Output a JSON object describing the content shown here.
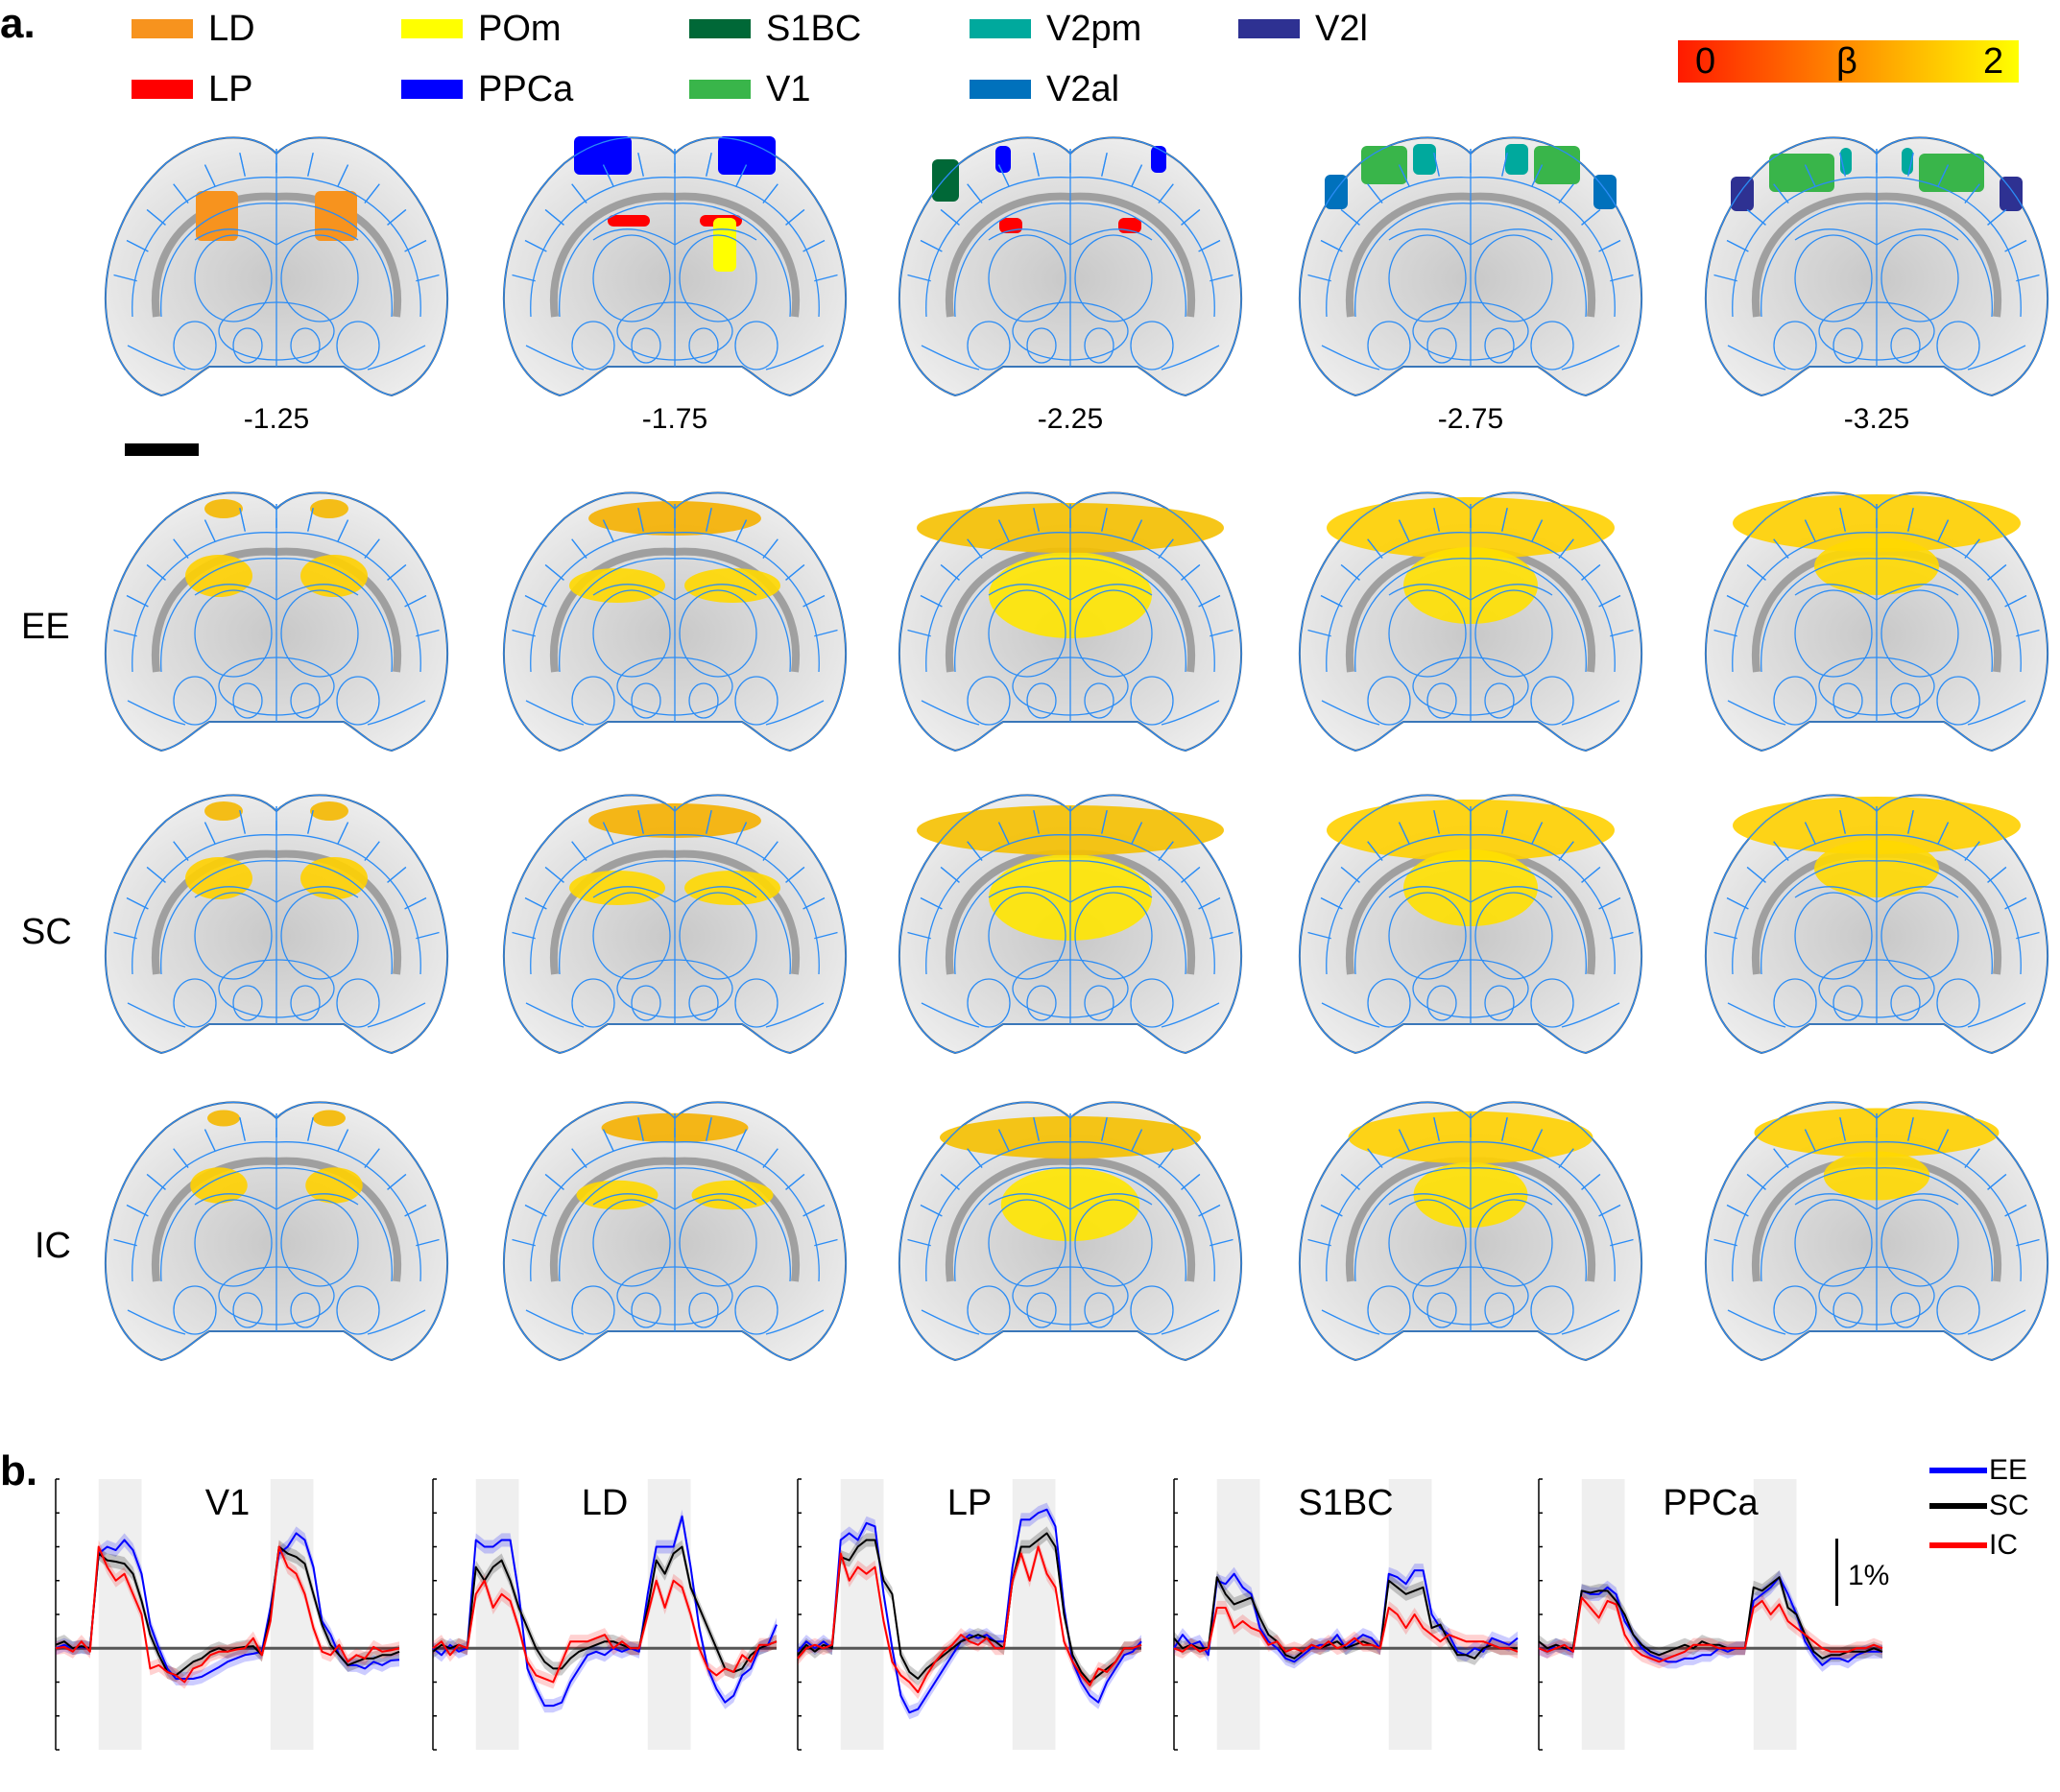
{
  "panel_a": {
    "letter": "a.",
    "legend": [
      {
        "label": "LD",
        "color": "#f7931e"
      },
      {
        "label": "LP",
        "color": "#ff0000"
      },
      {
        "label": "POm",
        "color": "#ffff00"
      },
      {
        "label": "PPCa",
        "color": "#0000ff"
      },
      {
        "label": "S1BC",
        "color": "#006837"
      },
      {
        "label": "V1",
        "color": "#39b54a"
      },
      {
        "label": "V2pm",
        "color": "#00a99d"
      },
      {
        "label": "V2al",
        "color": "#0071bc"
      },
      {
        "label": "V2l",
        "color": "#2e3192"
      }
    ],
    "colorbar": {
      "min_label": "0",
      "mid_label": "β",
      "max_label": "2",
      "min": 0,
      "max": 2
    },
    "slices": [
      {
        "label": "-1.25",
        "regions": [
          "LD"
        ]
      },
      {
        "label": "-1.75",
        "regions": [
          "PPCa",
          "LP",
          "POm"
        ]
      },
      {
        "label": "-2.25",
        "regions": [
          "S1BC",
          "PPCa",
          "LP"
        ]
      },
      {
        "label": "-2.75",
        "regions": [
          "V2al",
          "V1",
          "V2pm"
        ]
      },
      {
        "label": "-3.25",
        "regions": [
          "V2l",
          "V1",
          "V2pm"
        ]
      }
    ],
    "rows": [
      {
        "label": "EE"
      },
      {
        "label": "SC"
      },
      {
        "label": "IC"
      }
    ]
  },
  "chart_data": {
    "type": "line",
    "panel_letter": "b.",
    "xlabel": "",
    "ylabel": "",
    "x": [
      0,
      1,
      2,
      3,
      4,
      5,
      6,
      7,
      8,
      9,
      10,
      11,
      12,
      13,
      14,
      15,
      16,
      17,
      18,
      19,
      20,
      21,
      22,
      23,
      24,
      25,
      26,
      27,
      28,
      29,
      30,
      31,
      32,
      33,
      34,
      35,
      36,
      37,
      38,
      39,
      40
    ],
    "xlim": [
      0,
      40
    ],
    "ylim": [
      -1.5,
      2.5
    ],
    "y_tick_step": 0.5,
    "stimulus_windows": [
      [
        5,
        10
      ],
      [
        25,
        30
      ]
    ],
    "scale_bar": {
      "label": "1%",
      "value": 1
    },
    "legend": [
      {
        "name": "EE",
        "color": "#0000ff"
      },
      {
        "name": "SC",
        "color": "#000000"
      },
      {
        "name": "IC",
        "color": "#ff0000"
      }
    ],
    "error_band_halfwidth": 0.1,
    "panels": [
      {
        "title": "V1",
        "series": [
          {
            "name": "EE",
            "values": [
              0,
              0.05,
              0,
              0.02,
              0,
              1.4,
              1.5,
              1.45,
              1.6,
              1.45,
              1.1,
              0.35,
              0.0,
              -0.3,
              -0.45,
              -0.45,
              -0.45,
              -0.42,
              -0.35,
              -0.28,
              -0.2,
              -0.15,
              -0.1,
              -0.08,
              -0.05,
              0.6,
              1.4,
              1.5,
              1.7,
              1.6,
              1.2,
              0.4,
              0.2,
              -0.1,
              -0.25,
              -0.25,
              -0.3,
              -0.2,
              -0.25,
              -0.18,
              -0.17
            ]
          },
          {
            "name": "SC",
            "values": [
              0.05,
              0.1,
              0,
              0.03,
              0,
              1.4,
              1.3,
              1.28,
              1.25,
              1.1,
              0.7,
              0.2,
              -0.1,
              -0.35,
              -0.4,
              -0.3,
              -0.2,
              -0.15,
              -0.05,
              0,
              -0.05,
              0,
              0.02,
              0.03,
              -0.1,
              0.5,
              1.5,
              1.4,
              1.35,
              1.25,
              0.8,
              0.35,
              0.05,
              -0.1,
              -0.25,
              -0.2,
              -0.15,
              -0.15,
              -0.1,
              -0.1,
              -0.05
            ]
          },
          {
            "name": "IC",
            "values": [
              0,
              0.02,
              -0.05,
              0.1,
              -0.05,
              1.5,
              1.2,
              1.0,
              1.1,
              0.8,
              0.5,
              -0.3,
              -0.25,
              -0.35,
              -0.4,
              -0.5,
              -0.3,
              -0.25,
              -0.1,
              -0.05,
              -0.05,
              -0.02,
              0.0,
              0.15,
              -0.1,
              0.4,
              1.5,
              1.2,
              1.1,
              0.8,
              0.3,
              -0.05,
              -0.1,
              0.05,
              -0.2,
              -0.1,
              -0.15,
              0.02,
              -0.05,
              -0.03,
              0.0
            ]
          }
        ]
      },
      {
        "title": "LD",
        "series": [
          {
            "name": "EE",
            "values": [
              0,
              -0.1,
              0.05,
              -0.05,
              0,
              1.6,
              1.5,
              1.5,
              1.6,
              1.6,
              0.8,
              -0.3,
              -0.6,
              -0.85,
              -0.85,
              -0.8,
              -0.5,
              -0.3,
              -0.1,
              -0.05,
              -0.1,
              0.0,
              -0.05,
              0.0,
              -0.05,
              0.8,
              1.5,
              1.5,
              1.5,
              1.95,
              1.2,
              0.3,
              -0.3,
              -0.6,
              -0.8,
              -0.7,
              -0.4,
              -0.3,
              0.0,
              0.05,
              0.35
            ]
          },
          {
            "name": "SC",
            "values": [
              -0.05,
              0.05,
              0,
              0.05,
              0,
              1.2,
              1.0,
              1.2,
              1.3,
              1.0,
              0.6,
              0.3,
              0.0,
              -0.2,
              -0.3,
              -0.3,
              -0.15,
              -0.05,
              0.0,
              0.05,
              0.1,
              0.1,
              0.05,
              0.0,
              0.0,
              0.6,
              1.3,
              1.1,
              1.4,
              1.5,
              0.9,
              0.6,
              0.3,
              0.0,
              -0.3,
              -0.35,
              -0.3,
              -0.1,
              0.0,
              0.05,
              0.1
            ]
          },
          {
            "name": "IC",
            "values": [
              0,
              0.1,
              -0.1,
              0.05,
              0,
              0.8,
              1.0,
              0.6,
              0.8,
              0.7,
              0.3,
              -0.2,
              -0.4,
              -0.45,
              -0.5,
              -0.2,
              0.1,
              0.1,
              0.1,
              0.15,
              0.2,
              0.0,
              0.1,
              0.0,
              0.0,
              0.5,
              1.0,
              0.6,
              1.0,
              0.9,
              0.5,
              0.0,
              -0.3,
              -0.4,
              -0.3,
              -0.35,
              -0.1,
              -0.2,
              0.05,
              0.05,
              0.1
            ]
          }
        ]
      },
      {
        "title": "LP",
        "series": [
          {
            "name": "EE",
            "values": [
              -0.05,
              0.1,
              0,
              0.1,
              0,
              1.6,
              1.7,
              1.6,
              1.85,
              1.8,
              0.8,
              0.0,
              -0.7,
              -0.95,
              -0.9,
              -0.7,
              -0.5,
              -0.3,
              -0.1,
              0.1,
              0.2,
              0.15,
              0.2,
              0.1,
              0.1,
              1.2,
              1.9,
              1.9,
              2.0,
              2.05,
              1.8,
              0.6,
              -0.2,
              -0.5,
              -0.7,
              -0.8,
              -0.5,
              -0.3,
              -0.1,
              -0.05,
              0.1
            ]
          },
          {
            "name": "SC",
            "values": [
              -0.1,
              0.05,
              -0.05,
              0.05,
              0,
              1.35,
              1.3,
              1.5,
              1.6,
              1.6,
              1.0,
              0.8,
              -0.1,
              -0.35,
              -0.45,
              -0.3,
              -0.2,
              -0.1,
              0.0,
              0.1,
              0.15,
              0.2,
              0.15,
              0.1,
              0.0,
              1.0,
              1.5,
              1.5,
              1.6,
              1.7,
              1.5,
              0.5,
              -0.1,
              -0.35,
              -0.5,
              -0.4,
              -0.3,
              -0.2,
              0.0,
              0.0,
              0.05
            ]
          },
          {
            "name": "IC",
            "values": [
              -0.15,
              0.0,
              0.05,
              0.0,
              0.05,
              1.4,
              1.0,
              1.2,
              1.1,
              1.2,
              0.4,
              -0.2,
              -0.4,
              -0.5,
              -0.65,
              -0.4,
              -0.2,
              -0.05,
              0.05,
              0.2,
              0.1,
              0.05,
              0.15,
              0.0,
              0.0,
              1.0,
              1.4,
              1.0,
              1.5,
              1.1,
              0.9,
              0.1,
              -0.2,
              -0.4,
              -0.55,
              -0.3,
              -0.35,
              -0.2,
              0.0,
              0.0,
              0.05
            ]
          }
        ]
      },
      {
        "title": "S1BC",
        "series": [
          {
            "name": "EE",
            "values": [
              0,
              0.2,
              0.05,
              0.1,
              -0.1,
              1.0,
              0.95,
              1.1,
              0.9,
              0.8,
              0.3,
              0.1,
              0.0,
              -0.15,
              -0.2,
              -0.1,
              0.0,
              0.05,
              0.05,
              0.2,
              0.0,
              0.1,
              0.2,
              0.15,
              0.0,
              1.1,
              1.05,
              0.95,
              1.15,
              1.15,
              0.5,
              0.3,
              0.2,
              -0.05,
              -0.1,
              0.0,
              -0.05,
              0.15,
              0.1,
              0.05,
              0.15
            ]
          },
          {
            "name": "SC",
            "values": [
              0.15,
              0.0,
              0.05,
              0.0,
              0.0,
              1.05,
              0.8,
              0.65,
              0.7,
              0.75,
              0.45,
              0.2,
              0.1,
              -0.1,
              -0.15,
              -0.05,
              0.05,
              0.0,
              0.05,
              0.1,
              0.0,
              0.05,
              0.1,
              0.05,
              0.0,
              1.0,
              0.9,
              0.8,
              0.85,
              0.9,
              0.3,
              0.35,
              0.1,
              -0.1,
              -0.1,
              -0.15,
              0.0,
              0.05,
              0.0,
              0.0,
              0.0
            ]
          },
          {
            "name": "IC",
            "values": [
              0,
              -0.05,
              0.05,
              -0.05,
              0.0,
              0.6,
              0.6,
              0.3,
              0.4,
              0.3,
              0.25,
              0.05,
              0.1,
              -0.05,
              0.0,
              -0.05,
              0.05,
              0.0,
              0.1,
              0.0,
              0.05,
              0.15,
              0.05,
              0.05,
              0.0,
              0.6,
              0.5,
              0.3,
              0.5,
              0.3,
              0.2,
              0.1,
              0.2,
              0.15,
              0.1,
              0.1,
              0.1,
              0.05,
              0.0,
              0.0,
              -0.05
            ]
          }
        ]
      },
      {
        "title": "PPCa",
        "series": [
          {
            "name": "EE",
            "values": [
              0,
              -0.05,
              0.05,
              0.0,
              -0.05,
              0.85,
              0.8,
              0.8,
              0.9,
              0.8,
              0.4,
              0.2,
              0.0,
              -0.1,
              -0.15,
              -0.2,
              -0.2,
              -0.15,
              -0.15,
              -0.1,
              -0.1,
              0.0,
              -0.05,
              0.0,
              0.0,
              0.7,
              0.8,
              0.9,
              1.05,
              0.8,
              0.5,
              0.1,
              -0.1,
              -0.25,
              -0.15,
              -0.15,
              -0.2,
              -0.1,
              -0.05,
              -0.05,
              -0.05
            ]
          },
          {
            "name": "SC",
            "values": [
              0.1,
              0.0,
              0.05,
              0.0,
              0.0,
              0.85,
              0.82,
              0.85,
              0.85,
              0.7,
              0.5,
              0.2,
              0.05,
              -0.05,
              -0.1,
              -0.05,
              0.0,
              0.05,
              0.0,
              0.1,
              0.05,
              0.05,
              0.0,
              0.0,
              0.0,
              0.9,
              0.85,
              0.95,
              1.05,
              0.6,
              0.5,
              0.2,
              -0.05,
              -0.15,
              -0.1,
              -0.1,
              -0.05,
              -0.05,
              -0.05,
              0.0,
              -0.05
            ]
          },
          {
            "name": "IC",
            "values": [
              0,
              -0.05,
              0.0,
              0.05,
              -0.05,
              0.75,
              0.6,
              0.45,
              0.7,
              0.65,
              0.2,
              0.0,
              -0.1,
              -0.15,
              -0.2,
              -0.15,
              -0.1,
              -0.05,
              0.05,
              0.05,
              0.05,
              0.0,
              0.0,
              0.0,
              0.0,
              0.6,
              0.7,
              0.5,
              0.65,
              0.4,
              0.3,
              0.2,
              0.1,
              0.0,
              -0.05,
              -0.05,
              -0.05,
              0.0,
              0.0,
              0.05,
              0.0
            ]
          }
        ]
      }
    ]
  }
}
